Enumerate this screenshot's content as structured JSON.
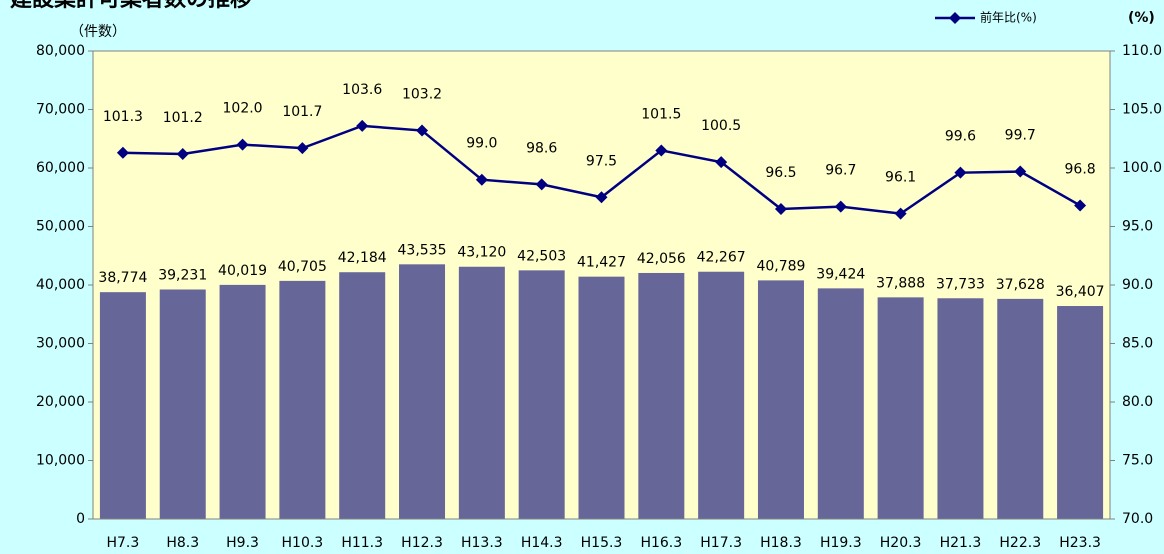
{
  "chart_data": {
    "type": "bar_line",
    "title": "建設業許可業者数の推移",
    "y_label": "（件数）",
    "y2_label": "(%)",
    "categories": [
      "H7.3",
      "H8.3",
      "H9.3",
      "H10.3",
      "H11.3",
      "H12.3",
      "H13.3",
      "H14.3",
      "H15.3",
      "H16.3",
      "H17.3",
      "H18.3",
      "H19.3",
      "H20.3",
      "H21.3",
      "H22.3",
      "H23.3"
    ],
    "series": [
      {
        "type": "bar",
        "color": "#666699",
        "values": [
          38774,
          39231,
          40019,
          40705,
          42184,
          43535,
          43120,
          42503,
          41427,
          42056,
          42267,
          40789,
          39424,
          37888,
          37733,
          37628,
          36407
        ],
        "value_labels": [
          "38,774",
          "39,231",
          "40,019",
          "40,705",
          "42,184",
          "43,535",
          "43,120",
          "42,503",
          "41,427",
          "42,056",
          "42,267",
          "40,789",
          "39,424",
          "37,888",
          "37,733",
          "37,628",
          "36,407"
        ]
      },
      {
        "type": "line",
        "name": "前年比(%)",
        "color": "#000080",
        "axis": "y2",
        "values": [
          101.3,
          101.2,
          102.0,
          101.7,
          103.6,
          103.2,
          99.0,
          98.6,
          97.5,
          101.5,
          100.5,
          96.5,
          96.7,
          96.1,
          99.6,
          99.7,
          96.8
        ],
        "value_labels": [
          "101.3",
          "101.2",
          "102.0",
          "101.7",
          "103.6",
          "103.2",
          "99.0",
          "98.6",
          "97.5",
          "101.5",
          "100.5",
          "96.5",
          "96.7",
          "96.1",
          "99.6",
          "99.7",
          "96.8"
        ]
      }
    ],
    "ylim": [
      0,
      80000
    ],
    "yticks": [
      0,
      {
        "value": 10000,
        "label": "10,000"
      },
      {
        "value": 20000,
        "label": "20,000"
      },
      {
        "value": 30000,
        "label": "30,000"
      },
      {
        "value": 40000,
        "label": "40,000"
      },
      {
        "value": 50000,
        "label": "50,000"
      },
      {
        "value": 60000,
        "label": "60,000"
      },
      {
        "value": 70000,
        "label": "70,000"
      },
      {
        "value": 80000,
        "label": "80,000"
      }
    ],
    "y2lim": [
      70,
      110
    ],
    "y2ticks": [
      {
        "value": 70,
        "label": "70.0"
      },
      {
        "value": 75,
        "label": "75.0"
      },
      {
        "value": 80,
        "label": "80.0"
      },
      {
        "value": 85,
        "label": "85.0"
      },
      {
        "value": 90,
        "label": "90.0"
      },
      {
        "value": 95,
        "label": "95.0"
      },
      {
        "value": 100,
        "label": "100.0"
      },
      {
        "value": 105,
        "label": "105.0"
      },
      {
        "value": 110,
        "label": "110.0"
      }
    ],
    "legend": "top-right",
    "grid": false
  }
}
